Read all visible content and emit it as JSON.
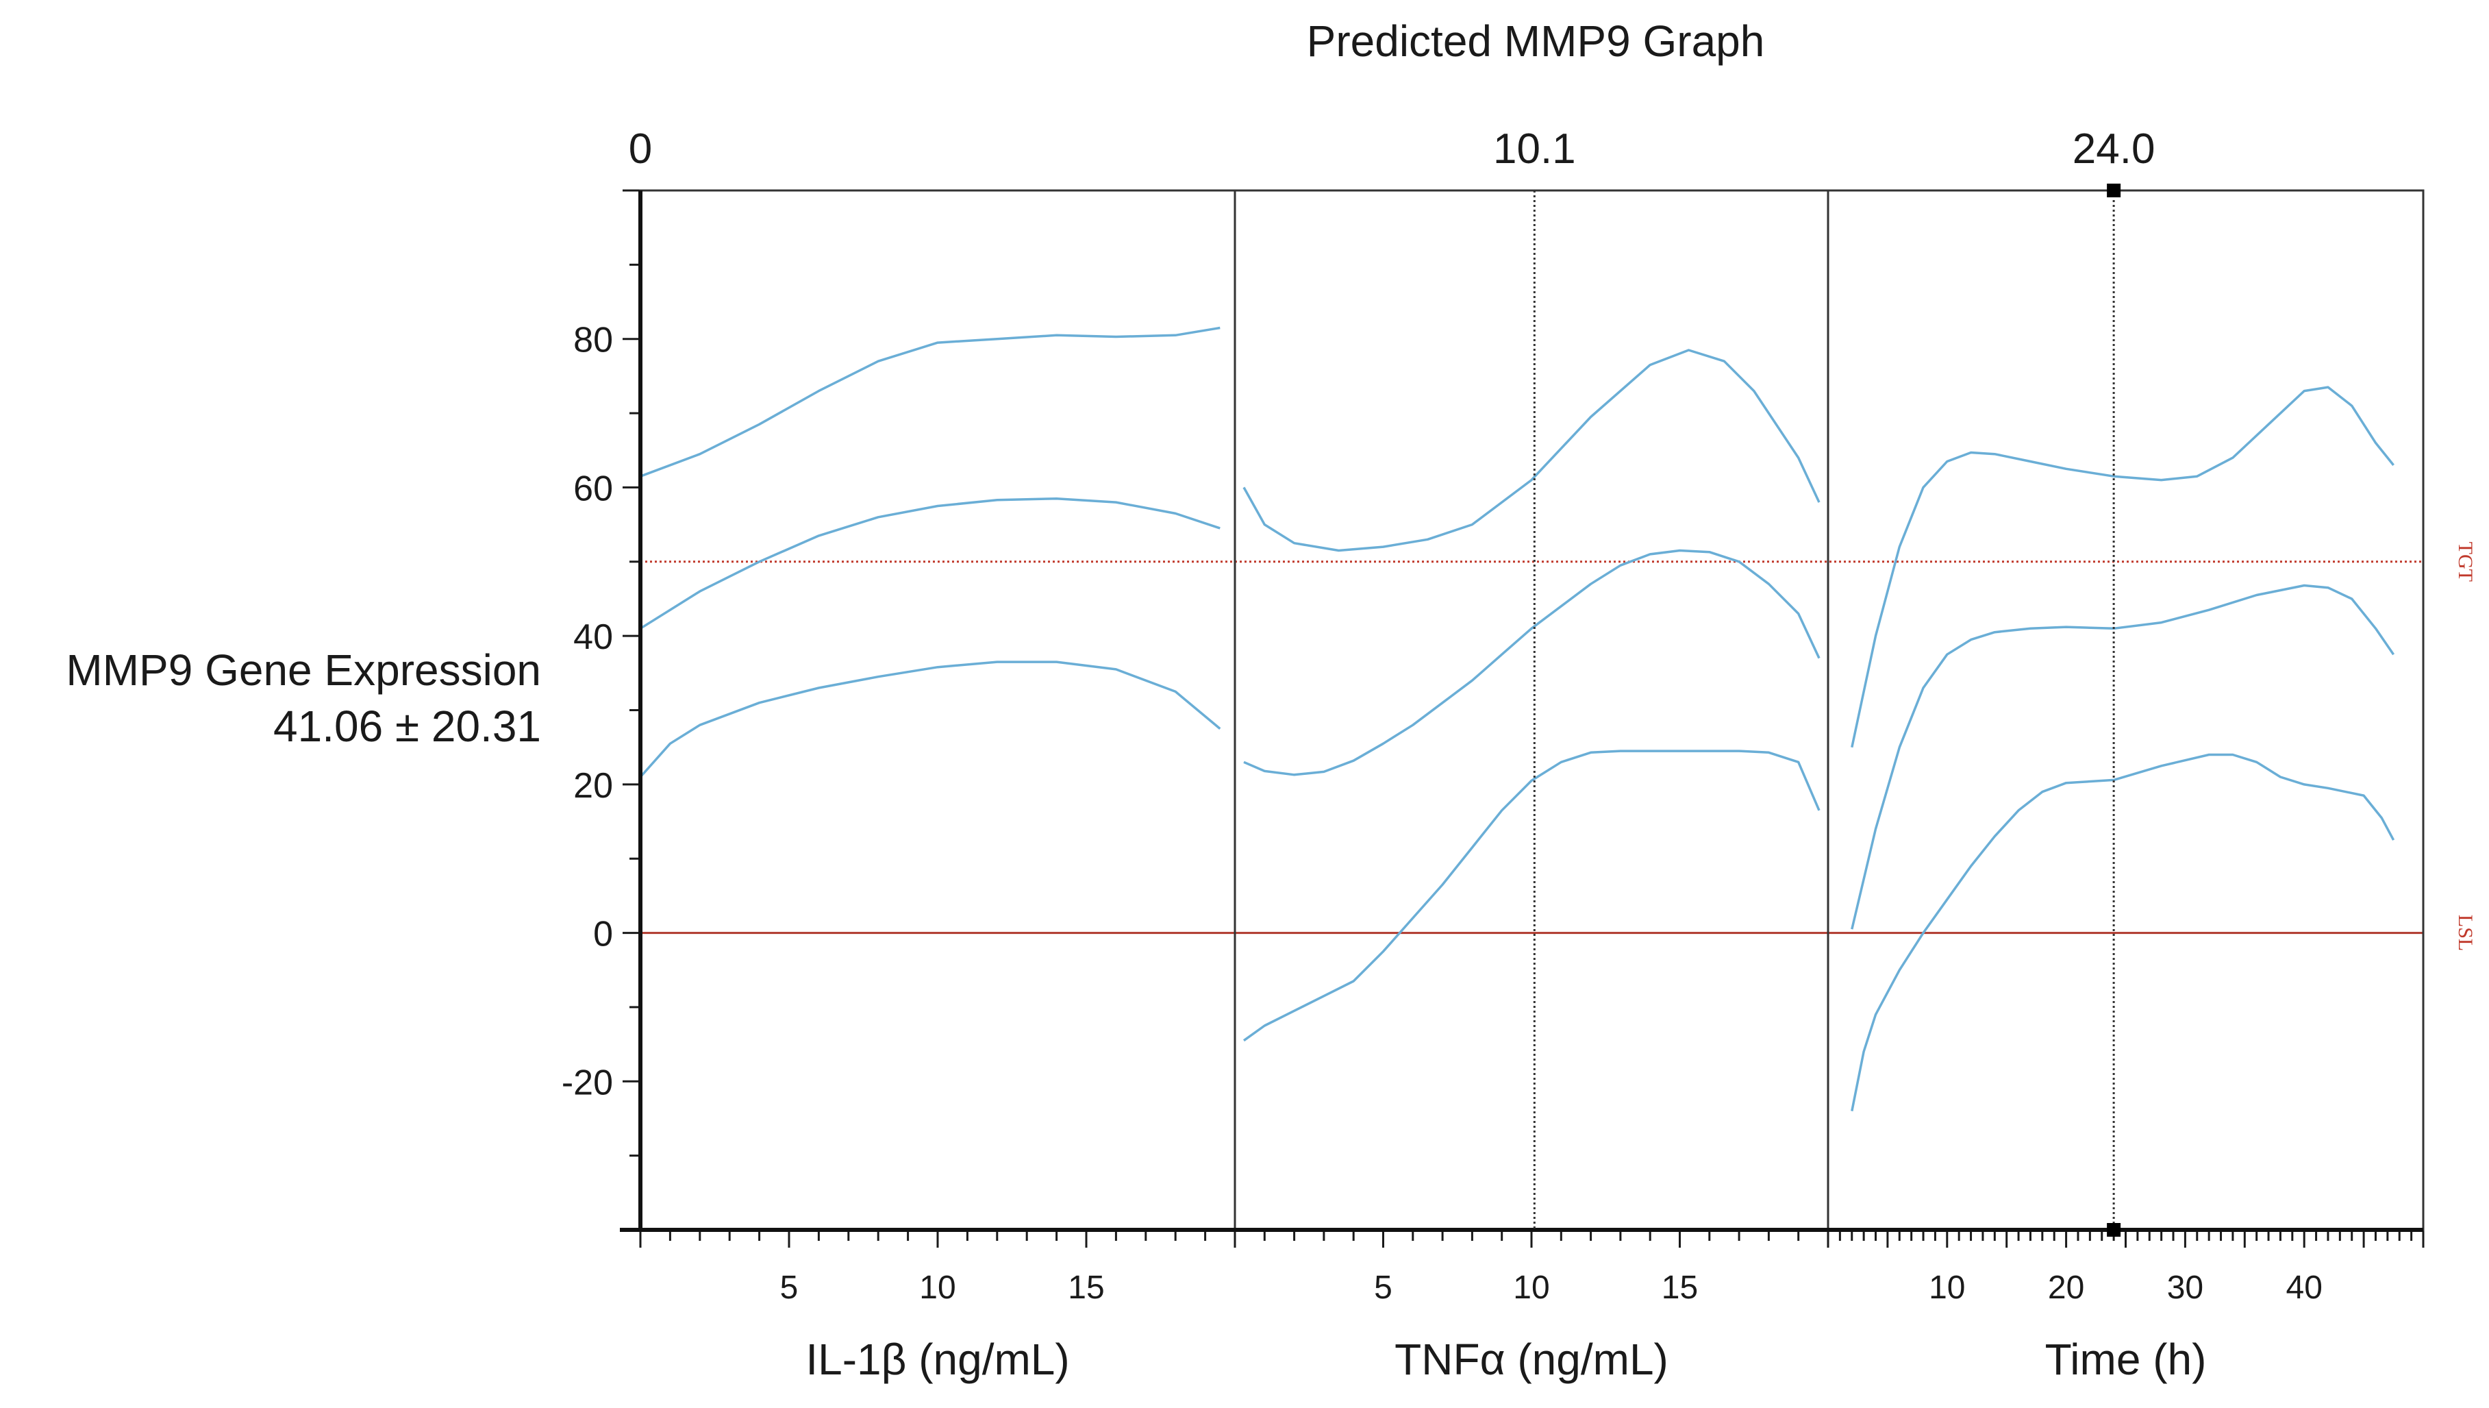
{
  "chart_data": {
    "type": "line",
    "title": "Predicted MMP9 Graph",
    "ylabel_line1": "MMP9 Gene Expression",
    "ylabel_line2": "41.06 ± 20.31",
    "ylim": [
      -40,
      100
    ],
    "yticks": [
      -20,
      0,
      20,
      40,
      60,
      80
    ],
    "ytick_labels": [
      "-20",
      "0",
      "20",
      "40",
      "60",
      "80"
    ],
    "reference_lines": [
      {
        "name": "TGT",
        "label": "TGT",
        "value": 50,
        "style": "dotted",
        "color": "#c0392b"
      },
      {
        "name": "LSL",
        "label": "LSL",
        "value": 0,
        "style": "solid",
        "color": "#b03a2e"
      }
    ],
    "curve_color": "#6aaed6",
    "panels": [
      {
        "id": "il1b",
        "xlabel": "IL-1β (ng/mL)",
        "xlim": [
          0,
          20
        ],
        "xticks": [
          5,
          10,
          15
        ],
        "xtick_labels": [
          "5",
          "10",
          "15"
        ],
        "current_value": 0,
        "current_label": "0",
        "show_marker_line": false,
        "series": [
          {
            "name": "upper",
            "x": [
              0,
              2,
              4,
              6,
              8,
              10,
              12,
              14,
              16,
              18,
              19.5
            ],
            "y": [
              61.5,
              64.5,
              68.5,
              73,
              77,
              79.5,
              80,
              80.5,
              80.3,
              80.5,
              81.5
            ]
          },
          {
            "name": "predicted",
            "x": [
              0,
              2,
              4,
              6,
              8,
              10,
              12,
              14,
              16,
              18,
              19.5
            ],
            "y": [
              41,
              46,
              50,
              53.5,
              56,
              57.5,
              58.3,
              58.5,
              58,
              56.5,
              54.5
            ]
          },
          {
            "name": "lower",
            "x": [
              0,
              1,
              2,
              4,
              6,
              8,
              10,
              12,
              14,
              16,
              18,
              19.5
            ],
            "y": [
              21,
              25.5,
              28,
              31,
              33,
              34.5,
              35.8,
              36.5,
              36.5,
              35.5,
              32.5,
              27.5
            ]
          }
        ]
      },
      {
        "id": "tnfa",
        "xlabel": "TNFα (ng/mL)",
        "xlim": [
          0,
          20
        ],
        "xticks": [
          5,
          10,
          15
        ],
        "xtick_labels": [
          "5",
          "10",
          "15"
        ],
        "current_value": 10.1,
        "current_label": "10.1",
        "show_marker_line": true,
        "series": [
          {
            "name": "upper",
            "x": [
              0.3,
              1,
              2,
              3.5,
              5,
              6.5,
              8,
              10,
              12,
              14,
              15.3,
              16.5,
              17.5,
              19,
              19.7
            ],
            "y": [
              60,
              55,
              52.5,
              51.5,
              52,
              53,
              55,
              61,
              69.5,
              76.5,
              78.5,
              77,
              73,
              64,
              58
            ]
          },
          {
            "name": "predicted",
            "x": [
              0.3,
              1,
              2,
              3,
              4,
              5,
              6,
              7,
              8,
              9,
              10,
              11,
              12,
              13,
              14,
              15,
              16,
              17,
              18,
              19,
              19.7
            ],
            "y": [
              23,
              21.8,
              21.3,
              21.7,
              23.2,
              25.5,
              28,
              31,
              34,
              37.5,
              41,
              44,
              47,
              49.5,
              51,
              51.5,
              51.3,
              50,
              47,
              43,
              37
            ]
          },
          {
            "name": "lower",
            "x": [
              0.3,
              1,
              2,
              3,
              4,
              5,
              6,
              7,
              8,
              9,
              10,
              11,
              12,
              13,
              14,
              15,
              16,
              17,
              18,
              19,
              19.7
            ],
            "y": [
              -14.5,
              -12.5,
              -10.5,
              -8.5,
              -6.5,
              -2.5,
              2,
              6.5,
              11.5,
              16.5,
              20.5,
              23,
              24.3,
              24.5,
              24.5,
              24.5,
              24.5,
              24.5,
              24.3,
              23,
              16.5
            ]
          }
        ]
      },
      {
        "id": "time",
        "xlabel": "Time (h)",
        "xlim": [
          0,
          50
        ],
        "xticks": [
          10,
          20,
          30,
          40
        ],
        "xtick_labels": [
          "10",
          "20",
          "30",
          "40"
        ],
        "current_value": 24.0,
        "current_label": "24.0",
        "show_marker_line": true,
        "series": [
          {
            "name": "upper",
            "x": [
              2,
              4,
              6,
              8,
              10,
              12,
              14,
              17,
              20,
              24,
              28,
              31,
              34,
              37,
              40,
              42,
              44,
              46,
              47.5
            ],
            "y": [
              25,
              40,
              52,
              60,
              63.5,
              64.7,
              64.5,
              63.5,
              62.5,
              61.5,
              61,
              61.5,
              64,
              68.5,
              73,
              73.5,
              71,
              66,
              63
            ]
          },
          {
            "name": "predicted",
            "x": [
              2,
              4,
              6,
              8,
              10,
              12,
              14,
              17,
              20,
              24,
              28,
              32,
              36,
              40,
              42,
              44,
              46,
              47.5
            ],
            "y": [
              0.5,
              14,
              25,
              33,
              37.5,
              39.5,
              40.5,
              41,
              41.2,
              41,
              41.8,
              43.5,
              45.5,
              46.8,
              46.5,
              45,
              41,
              37.5
            ]
          },
          {
            "name": "lower",
            "x": [
              2,
              3,
              4,
              6,
              8,
              10,
              12,
              14,
              16,
              18,
              20,
              24,
              28,
              32,
              34,
              36,
              38,
              40,
              42,
              45,
              46.5,
              47.5
            ],
            "y": [
              -24,
              -16,
              -11,
              -5,
              0,
              4.5,
              9,
              13,
              16.5,
              19,
              20.2,
              20.6,
              22.5,
              24,
              24,
              23,
              21,
              20,
              19.5,
              18.5,
              15.5,
              12.5
            ]
          }
        ]
      }
    ]
  }
}
